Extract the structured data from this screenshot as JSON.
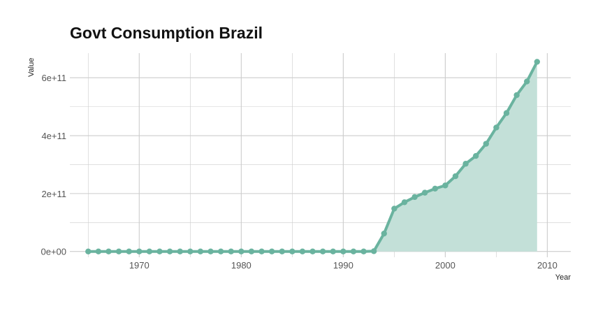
{
  "chart_data": {
    "type": "area",
    "title": "Govt Consumption Brazil",
    "xlabel": "Year",
    "ylabel": "Value",
    "xlim": [
      1963.2,
      2012.3
    ],
    "ylim": [
      -20000000000,
      685000000000
    ],
    "x_ticks": [
      1970,
      1980,
      1990,
      2000,
      2010
    ],
    "x_tick_labels": [
      "1970",
      "1980",
      "1990",
      "2000",
      "2010"
    ],
    "y_ticks": [
      0,
      200000000000,
      400000000000,
      600000000000
    ],
    "y_tick_labels": [
      "0e+00",
      "2e+11",
      "4e+11",
      "6e+11"
    ],
    "grid": true,
    "series_color": "#6ab39f",
    "fill_color": "#c3e0d8",
    "grid_color": "#cccccc",
    "series": [
      {
        "x": [
          1965,
          1966,
          1967,
          1968,
          1969,
          1970,
          1971,
          1972,
          1973,
          1974,
          1975,
          1976,
          1977,
          1978,
          1979,
          1980,
          1981,
          1982,
          1983,
          1984,
          1985,
          1986,
          1987,
          1988,
          1989,
          1990,
          1991,
          1992,
          1993,
          1994,
          1995,
          1996,
          1997,
          1998,
          1999,
          2000,
          2001,
          2002,
          2003,
          2004,
          2005,
          2006,
          2007,
          2008,
          2009
        ],
        "y": [
          0,
          0,
          0,
          0,
          0,
          0,
          0,
          0,
          0,
          0,
          0,
          0,
          0,
          0,
          0,
          0,
          0,
          0,
          0,
          0,
          0,
          0,
          0,
          0,
          0,
          0,
          0,
          0,
          1000000000,
          62000000000,
          148000000000,
          170000000000,
          188000000000,
          203000000000,
          217000000000,
          228000000000,
          260000000000,
          303000000000,
          330000000000,
          372000000000,
          428000000000,
          478000000000,
          540000000000,
          587000000000,
          655000000000
        ]
      }
    ]
  }
}
